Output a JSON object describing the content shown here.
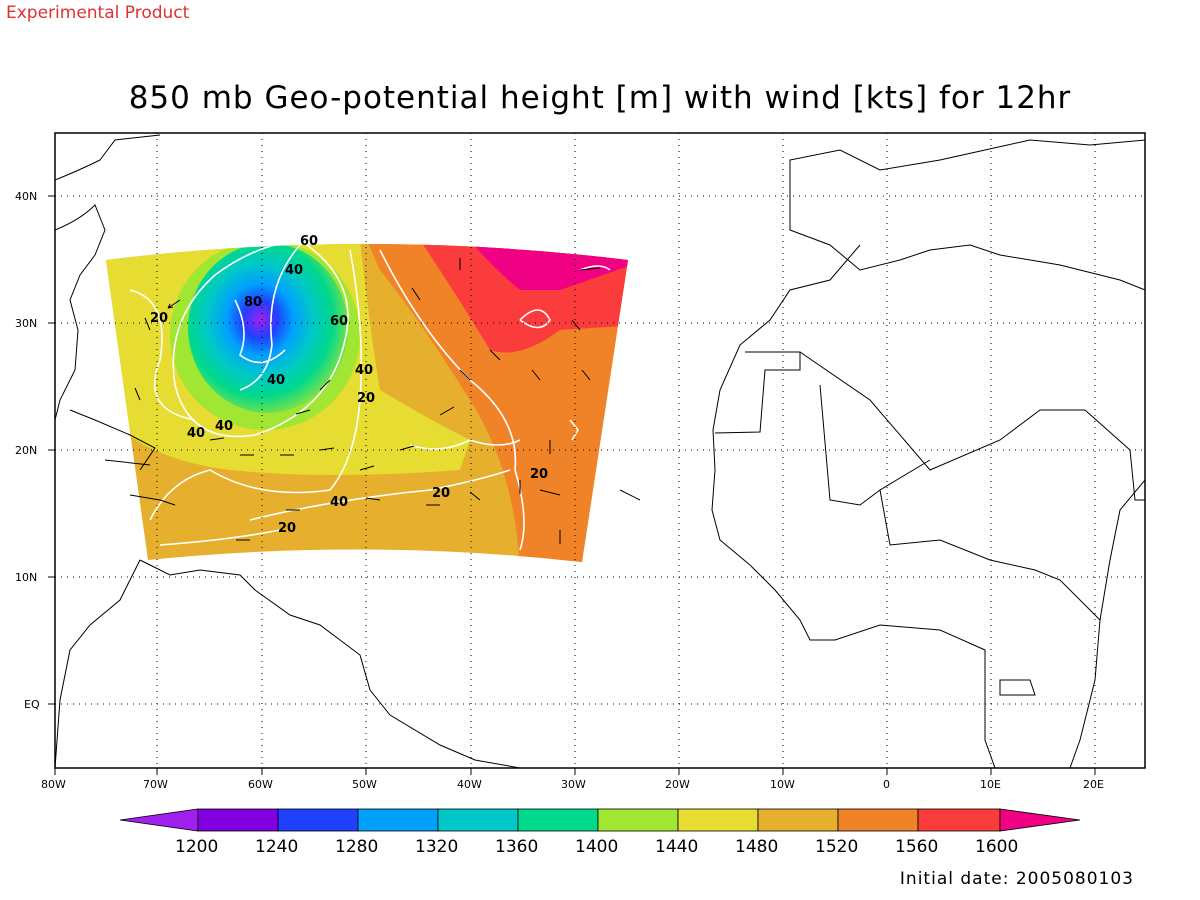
{
  "header": {
    "experimental": "Experimental Product",
    "title": "850 mb Geo-potential height [m] with wind [kts] for 12hr"
  },
  "footer": {
    "initial_date": "Initial date: 2005080103"
  },
  "map": {
    "lon_labels": [
      "80W",
      "70W",
      "60W",
      "50W",
      "40W",
      "30W",
      "20W",
      "10W",
      "0",
      "10E",
      "20E"
    ],
    "lat_labels": [
      "40N",
      "30N",
      "20N",
      "10N",
      "EQ"
    ],
    "wind_contour_labels": [
      "60",
      "40",
      "80",
      "60",
      "40",
      "40",
      "20",
      "20",
      "40",
      "40",
      "40",
      "20",
      "40",
      "20",
      "20"
    ]
  },
  "colorbar": {
    "labels": [
      "1200",
      "1240",
      "1280",
      "1320",
      "1360",
      "1400",
      "1440",
      "1480",
      "1520",
      "1560",
      "1600"
    ],
    "colors": [
      "#a020f0",
      "#8000e0",
      "#2040ff",
      "#00a0ff",
      "#00c8c8",
      "#00d88c",
      "#a0e632",
      "#e6dc32",
      "#e6af2d",
      "#f08228",
      "#fa3c3c",
      "#f00082"
    ]
  }
}
